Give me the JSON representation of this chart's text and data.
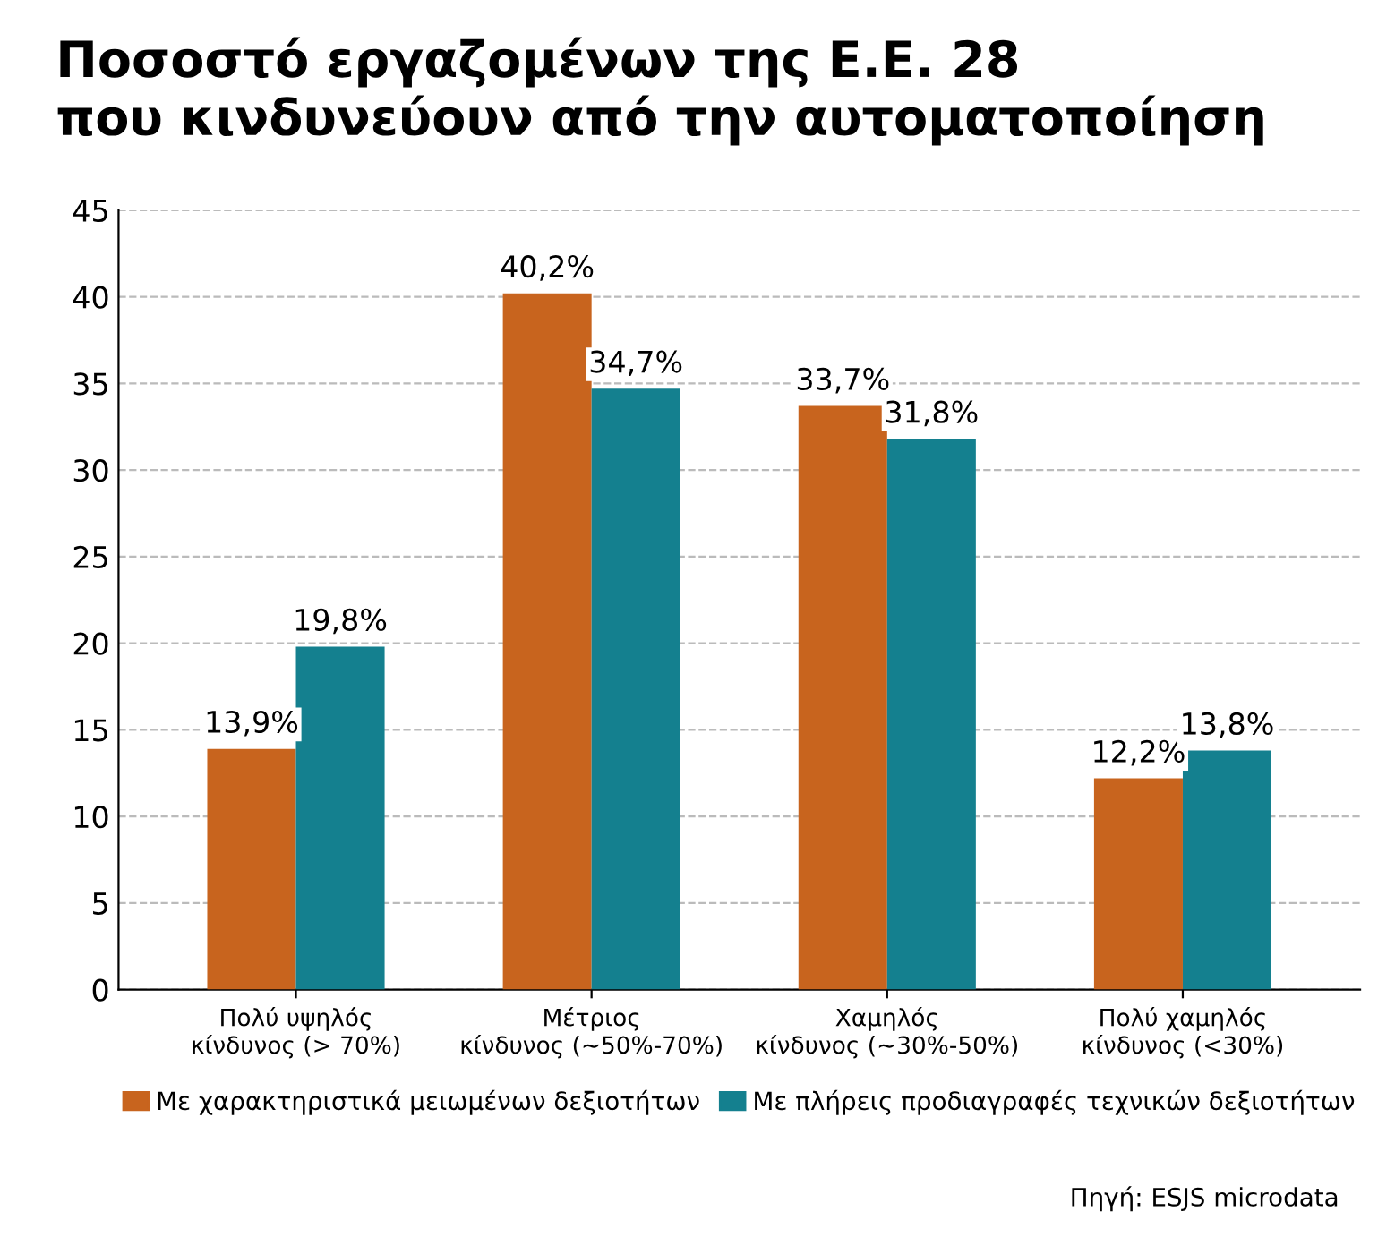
{
  "chart_data": {
    "type": "bar",
    "title": "Ποσοστό εργαζομένων της Ε.Ε. 28\nπου κινδυνεύουν από την αυτοματοποίηση",
    "categories": [
      "Πολύ υψηλός\nκίνδυνος (> 70%)",
      "Μέτριος\nκίνδυνος (~50%-70%)",
      "Χαμηλός\nκίνδυνος (~30%-50%)",
      "Πολύ χαμηλός\nκίνδυνος (<30%)"
    ],
    "series": [
      {
        "name": "Με χαρακτηριστικά μειωμένων δεξιοτήτων",
        "color": "#c8641e",
        "values": [
          13.9,
          40.2,
          33.7,
          12.2
        ],
        "value_labels": [
          "13,9%",
          "40,2%",
          "33,7%",
          "12,2%"
        ]
      },
      {
        "name": "Με πλήρεις προδιαγραφές τεχνικών δεξιοτήτων",
        "color": "#14808f",
        "values": [
          19.8,
          34.7,
          31.8,
          13.8
        ],
        "value_labels": [
          "19,8%",
          "34,7%",
          "31,8%",
          "13,8%"
        ]
      }
    ],
    "ylim": [
      0,
      45
    ],
    "yticks": [
      0,
      5,
      10,
      15,
      20,
      25,
      30,
      35,
      40,
      45
    ],
    "grid": "y",
    "legend": "bottom",
    "annotations": [
      "Πηγή: ESJS microdata"
    ]
  }
}
